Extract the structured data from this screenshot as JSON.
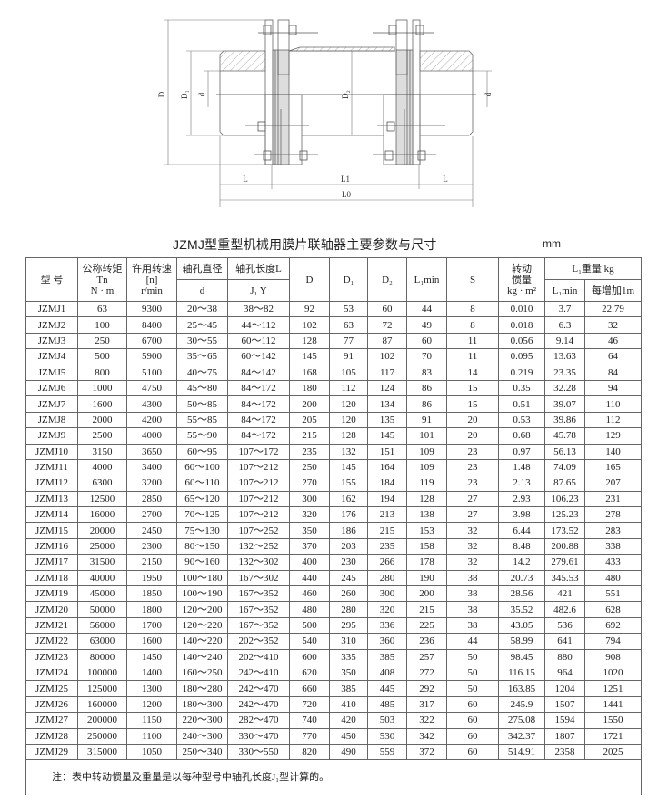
{
  "drawing": {
    "labels": {
      "D": "D",
      "D1": "D₁",
      "d_left": "d",
      "D2": "D₂",
      "d_right": "d",
      "L_left": "L",
      "L1": "L1",
      "L_right": "L",
      "L0": "L0"
    }
  },
  "title": "JZMJ型重型机械用膜片联轴器主要参数与尺寸",
  "unit": "mm",
  "table": {
    "headers": {
      "model": "型 号",
      "torque": [
        "公称转矩",
        "Tn",
        "N · m"
      ],
      "speed": [
        "许用转速",
        "[n]",
        "r/min"
      ],
      "bore_dia": "轴孔直径",
      "bore_dia_sub": "d",
      "bore_len": "轴孔长度L",
      "bore_len_sub": "J₁  Y",
      "D": "D",
      "D1": "D₁",
      "D2": "D₂",
      "L1min": "L₁min",
      "S": "S",
      "inertia": [
        "转动",
        "惯量",
        "kg · m²"
      ],
      "weight": "L₁重量 kg",
      "weight_sub1": "L₁min",
      "weight_sub2": "每增加1m"
    },
    "rows": [
      [
        "JZMJ1",
        "63",
        "9300",
        "20～38",
        "38～82",
        "92",
        "53",
        "60",
        "44",
        "8",
        "0.010",
        "3.7",
        "22.79"
      ],
      [
        "JZMJ2",
        "100",
        "8400",
        "25～45",
        "44～112",
        "102",
        "63",
        "72",
        "49",
        "8",
        "0.018",
        "6.3",
        "32"
      ],
      [
        "JZMJ3",
        "250",
        "6700",
        "30～55",
        "60～112",
        "128",
        "77",
        "87",
        "60",
        "11",
        "0.056",
        "9.14",
        "46"
      ],
      [
        "JZMJ4",
        "500",
        "5900",
        "35～65",
        "60～142",
        "145",
        "91",
        "102",
        "70",
        "11",
        "0.095",
        "13.63",
        "64"
      ],
      [
        "JZMJ5",
        "800",
        "5100",
        "40～75",
        "84～142",
        "168",
        "105",
        "117",
        "83",
        "14",
        "0.219",
        "23.35",
        "84"
      ],
      [
        "JZMJ6",
        "1000",
        "4750",
        "45～80",
        "84～172",
        "180",
        "112",
        "124",
        "86",
        "15",
        "0.35",
        "32.28",
        "94"
      ],
      [
        "JZMJ7",
        "1600",
        "4300",
        "50～85",
        "84～172",
        "200",
        "120",
        "134",
        "86",
        "15",
        "0.51",
        "39.07",
        "110"
      ],
      [
        "JZMJ8",
        "2000",
        "4200",
        "55～85",
        "84～172",
        "205",
        "120",
        "135",
        "91",
        "20",
        "0.53",
        "39.86",
        "112"
      ],
      [
        "JZMJ9",
        "2500",
        "4000",
        "55～90",
        "84～172",
        "215",
        "128",
        "145",
        "101",
        "20",
        "0.68",
        "45.78",
        "129"
      ],
      [
        "JZMJ10",
        "3150",
        "3650",
        "60～95",
        "107～172",
        "235",
        "132",
        "151",
        "109",
        "23",
        "0.97",
        "56.13",
        "140"
      ],
      [
        "JZMJ11",
        "4000",
        "3400",
        "60～100",
        "107～212",
        "250",
        "145",
        "164",
        "109",
        "23",
        "1.48",
        "74.09",
        "165"
      ],
      [
        "JZMJ12",
        "6300",
        "3200",
        "60～110",
        "107～212",
        "270",
        "155",
        "184",
        "119",
        "23",
        "2.13",
        "87.65",
        "207"
      ],
      [
        "JZMJ13",
        "12500",
        "2850",
        "65～120",
        "107～212",
        "300",
        "162",
        "194",
        "128",
        "27",
        "2.93",
        "106.23",
        "231"
      ],
      [
        "JZMJ14",
        "16000",
        "2700",
        "70～125",
        "107～212",
        "320",
        "176",
        "213",
        "138",
        "27",
        "3.98",
        "125.23",
        "278"
      ],
      [
        "JZMJ15",
        "20000",
        "2450",
        "75～130",
        "107～252",
        "350",
        "186",
        "215",
        "153",
        "32",
        "6.44",
        "173.52",
        "283"
      ],
      [
        "JZMJ16",
        "25000",
        "2300",
        "80～150",
        "132～252",
        "370",
        "203",
        "235",
        "158",
        "32",
        "8.48",
        "200.88",
        "338"
      ],
      [
        "JZMJ17",
        "31500",
        "2150",
        "90～160",
        "132～302",
        "400",
        "230",
        "266",
        "178",
        "32",
        "14.2",
        "279.61",
        "433"
      ],
      [
        "JZMJ18",
        "40000",
        "1950",
        "100～180",
        "167～302",
        "440",
        "245",
        "280",
        "190",
        "38",
        "20.73",
        "345.53",
        "480"
      ],
      [
        "JZMJ19",
        "45000",
        "1850",
        "100～190",
        "167～352",
        "460",
        "260",
        "300",
        "200",
        "38",
        "28.56",
        "421",
        "551"
      ],
      [
        "JZMJ20",
        "50000",
        "1800",
        "120～200",
        "167～352",
        "480",
        "280",
        "320",
        "215",
        "38",
        "35.52",
        "482.6",
        "628"
      ],
      [
        "JZMJ21",
        "56000",
        "1700",
        "120～220",
        "167～352",
        "500",
        "295",
        "336",
        "225",
        "38",
        "43.05",
        "536",
        "692"
      ],
      [
        "JZMJ22",
        "63000",
        "1600",
        "140～220",
        "202～352",
        "540",
        "310",
        "360",
        "236",
        "44",
        "58.99",
        "641",
        "794"
      ],
      [
        "JZMJ23",
        "80000",
        "1450",
        "140～240",
        "202～410",
        "600",
        "335",
        "385",
        "257",
        "50",
        "98.45",
        "880",
        "908"
      ],
      [
        "JZMJ24",
        "100000",
        "1400",
        "160～250",
        "242～410",
        "620",
        "350",
        "408",
        "272",
        "50",
        "116.15",
        "964",
        "1020"
      ],
      [
        "JZMJ25",
        "125000",
        "1300",
        "180～280",
        "242～470",
        "660",
        "385",
        "445",
        "292",
        "50",
        "163.85",
        "1204",
        "1251"
      ],
      [
        "JZMJ26",
        "160000",
        "1200",
        "180～300",
        "242～470",
        "720",
        "410",
        "485",
        "317",
        "60",
        "245.9",
        "1507",
        "1441"
      ],
      [
        "JZMJ27",
        "200000",
        "1150",
        "220～300",
        "282～470",
        "740",
        "420",
        "503",
        "322",
        "60",
        "275.08",
        "1594",
        "1550"
      ],
      [
        "JZMJ28",
        "250000",
        "1100",
        "240～300",
        "330～470",
        "770",
        "450",
        "530",
        "342",
        "60",
        "342.37",
        "1807",
        "1721"
      ],
      [
        "JZMJ29",
        "315000",
        "1050",
        "250～340",
        "330～550",
        "820",
        "490",
        "559",
        "372",
        "60",
        "514.91",
        "2358",
        "2025"
      ]
    ],
    "note": "注：表中转动惯量及重量是以每种型号中轴孔长度J₁型计算的。"
  }
}
